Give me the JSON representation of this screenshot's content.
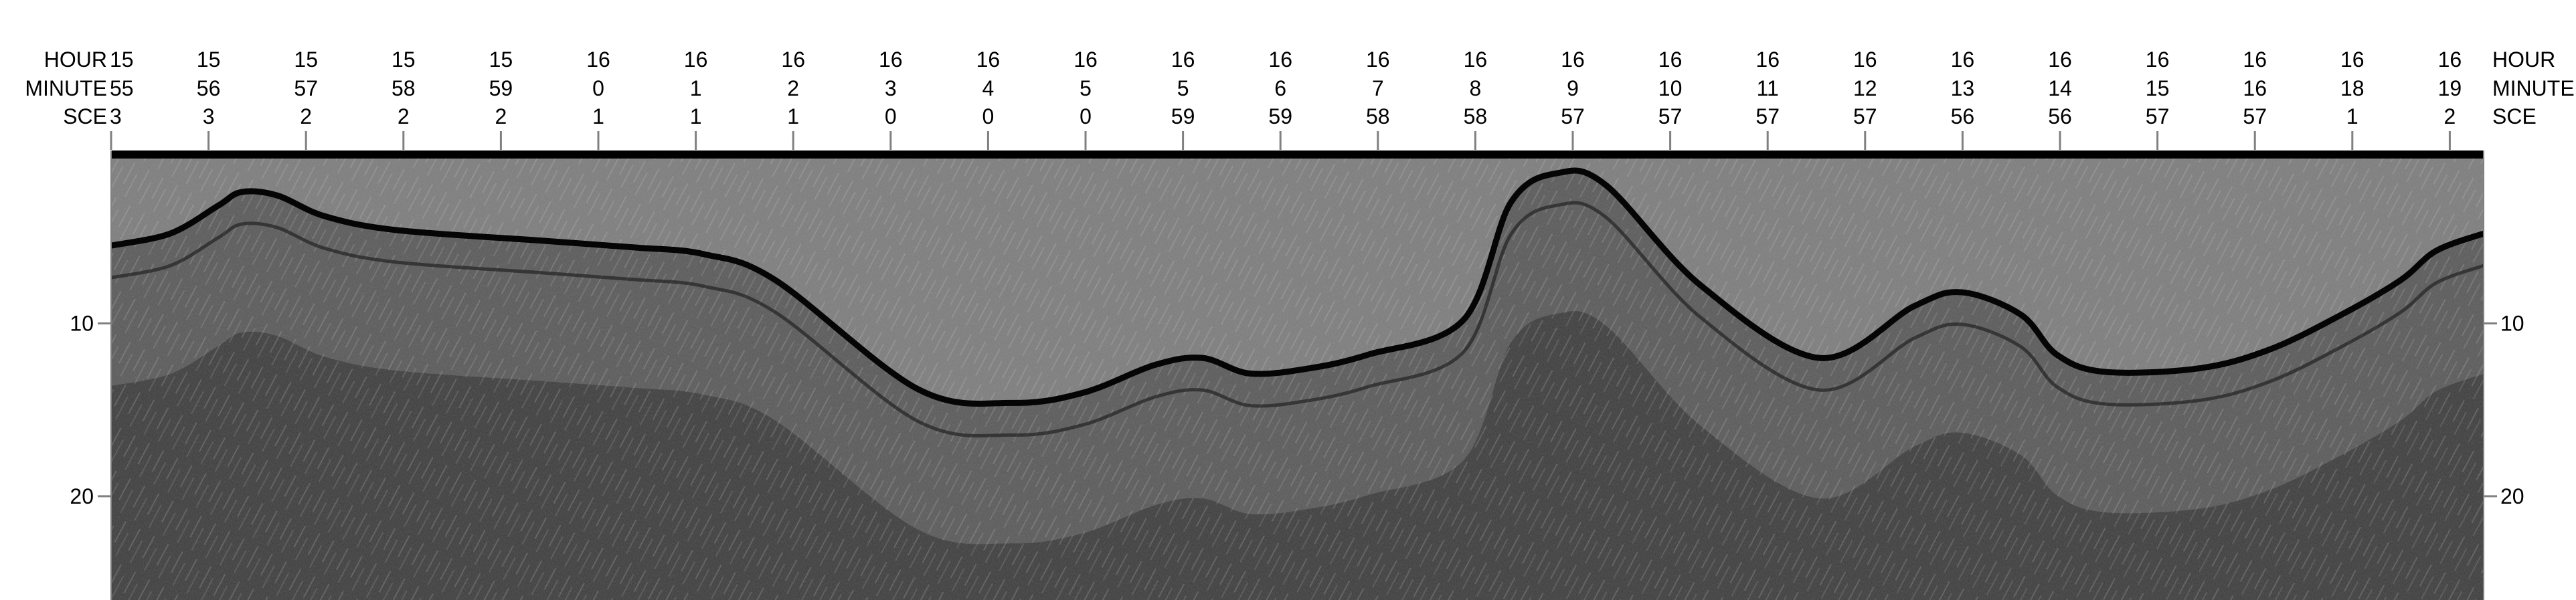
{
  "chart_data": {
    "type": "heatmap",
    "description_kind": "seismic-profile",
    "header_rows": [
      {
        "label": "HOUR",
        "right_label": "HOUR"
      },
      {
        "label": "MINUTE",
        "right_label": "MINUTE"
      },
      {
        "label": "SCE",
        "right_label": "SCE"
      }
    ],
    "time_ticks": [
      {
        "hour": "15",
        "minute": "55",
        "sce": "3",
        "clipped": true
      },
      {
        "hour": "15",
        "minute": "56",
        "sce": "3"
      },
      {
        "hour": "15",
        "minute": "57",
        "sce": "2"
      },
      {
        "hour": "15",
        "minute": "58",
        "sce": "2"
      },
      {
        "hour": "15",
        "minute": "59",
        "sce": "2"
      },
      {
        "hour": "16",
        "minute": "0",
        "sce": "1"
      },
      {
        "hour": "16",
        "minute": "1",
        "sce": "1"
      },
      {
        "hour": "16",
        "minute": "2",
        "sce": "1"
      },
      {
        "hour": "16",
        "minute": "3",
        "sce": "0"
      },
      {
        "hour": "16",
        "minute": "4",
        "sce": "0"
      },
      {
        "hour": "16",
        "minute": "5",
        "sce": "0"
      },
      {
        "hour": "16",
        "minute": "5",
        "sce": "59"
      },
      {
        "hour": "16",
        "minute": "6",
        "sce": "59"
      },
      {
        "hour": "16",
        "minute": "7",
        "sce": "58"
      },
      {
        "hour": "16",
        "minute": "8",
        "sce": "58"
      },
      {
        "hour": "16",
        "minute": "9",
        "sce": "57"
      },
      {
        "hour": "16",
        "minute": "10",
        "sce": "57"
      },
      {
        "hour": "16",
        "minute": "11",
        "sce": "57"
      },
      {
        "hour": "16",
        "minute": "12",
        "sce": "57"
      },
      {
        "hour": "16",
        "minute": "13",
        "sce": "56"
      },
      {
        "hour": "16",
        "minute": "14",
        "sce": "56"
      },
      {
        "hour": "16",
        "minute": "15",
        "sce": "57"
      },
      {
        "hour": "16",
        "minute": "16",
        "sce": "57"
      },
      {
        "hour": "16",
        "minute": "18",
        "sce": "1"
      },
      {
        "hour": "16",
        "minute": "19",
        "sce": "2"
      }
    ],
    "y_axis": {
      "ticks": [
        10,
        20
      ],
      "ylim": [
        26,
        0
      ],
      "inverted": true,
      "label_left": "",
      "label_right": ""
    },
    "reflectors": [
      {
        "name": "",
        "x": [
          0,
          2.5,
          4.5,
          5.5,
          7,
          9,
          12,
          18,
          22,
          25,
          28,
          34,
          38,
          41,
          44,
          46,
          48,
          50.5,
          53,
          57,
          59,
          61,
          63,
          67,
          72,
          76,
          78,
          80.5,
          82,
          84,
          88,
          91,
          94,
          96.5,
          98,
          100
        ],
        "y": [
          5.5,
          4.8,
          3.2,
          2.4,
          2.6,
          3.8,
          4.6,
          5.2,
          5.6,
          6.0,
          7.5,
          13.8,
          14.6,
          14.0,
          12.4,
          12.0,
          12.9,
          12.6,
          11.8,
          9.8,
          3.0,
          1.3,
          2.0,
          7.8,
          12.0,
          9.0,
          8.2,
          9.5,
          11.8,
          12.8,
          12.6,
          11.5,
          9.5,
          7.5,
          5.8,
          4.8
        ]
      }
    ],
    "colors": {
      "shallow_noise": "#7d7d7d",
      "deep_noise": "#3e3e3e",
      "reflector": "#050505",
      "top_band": "#000000",
      "axis": "#808080"
    }
  }
}
